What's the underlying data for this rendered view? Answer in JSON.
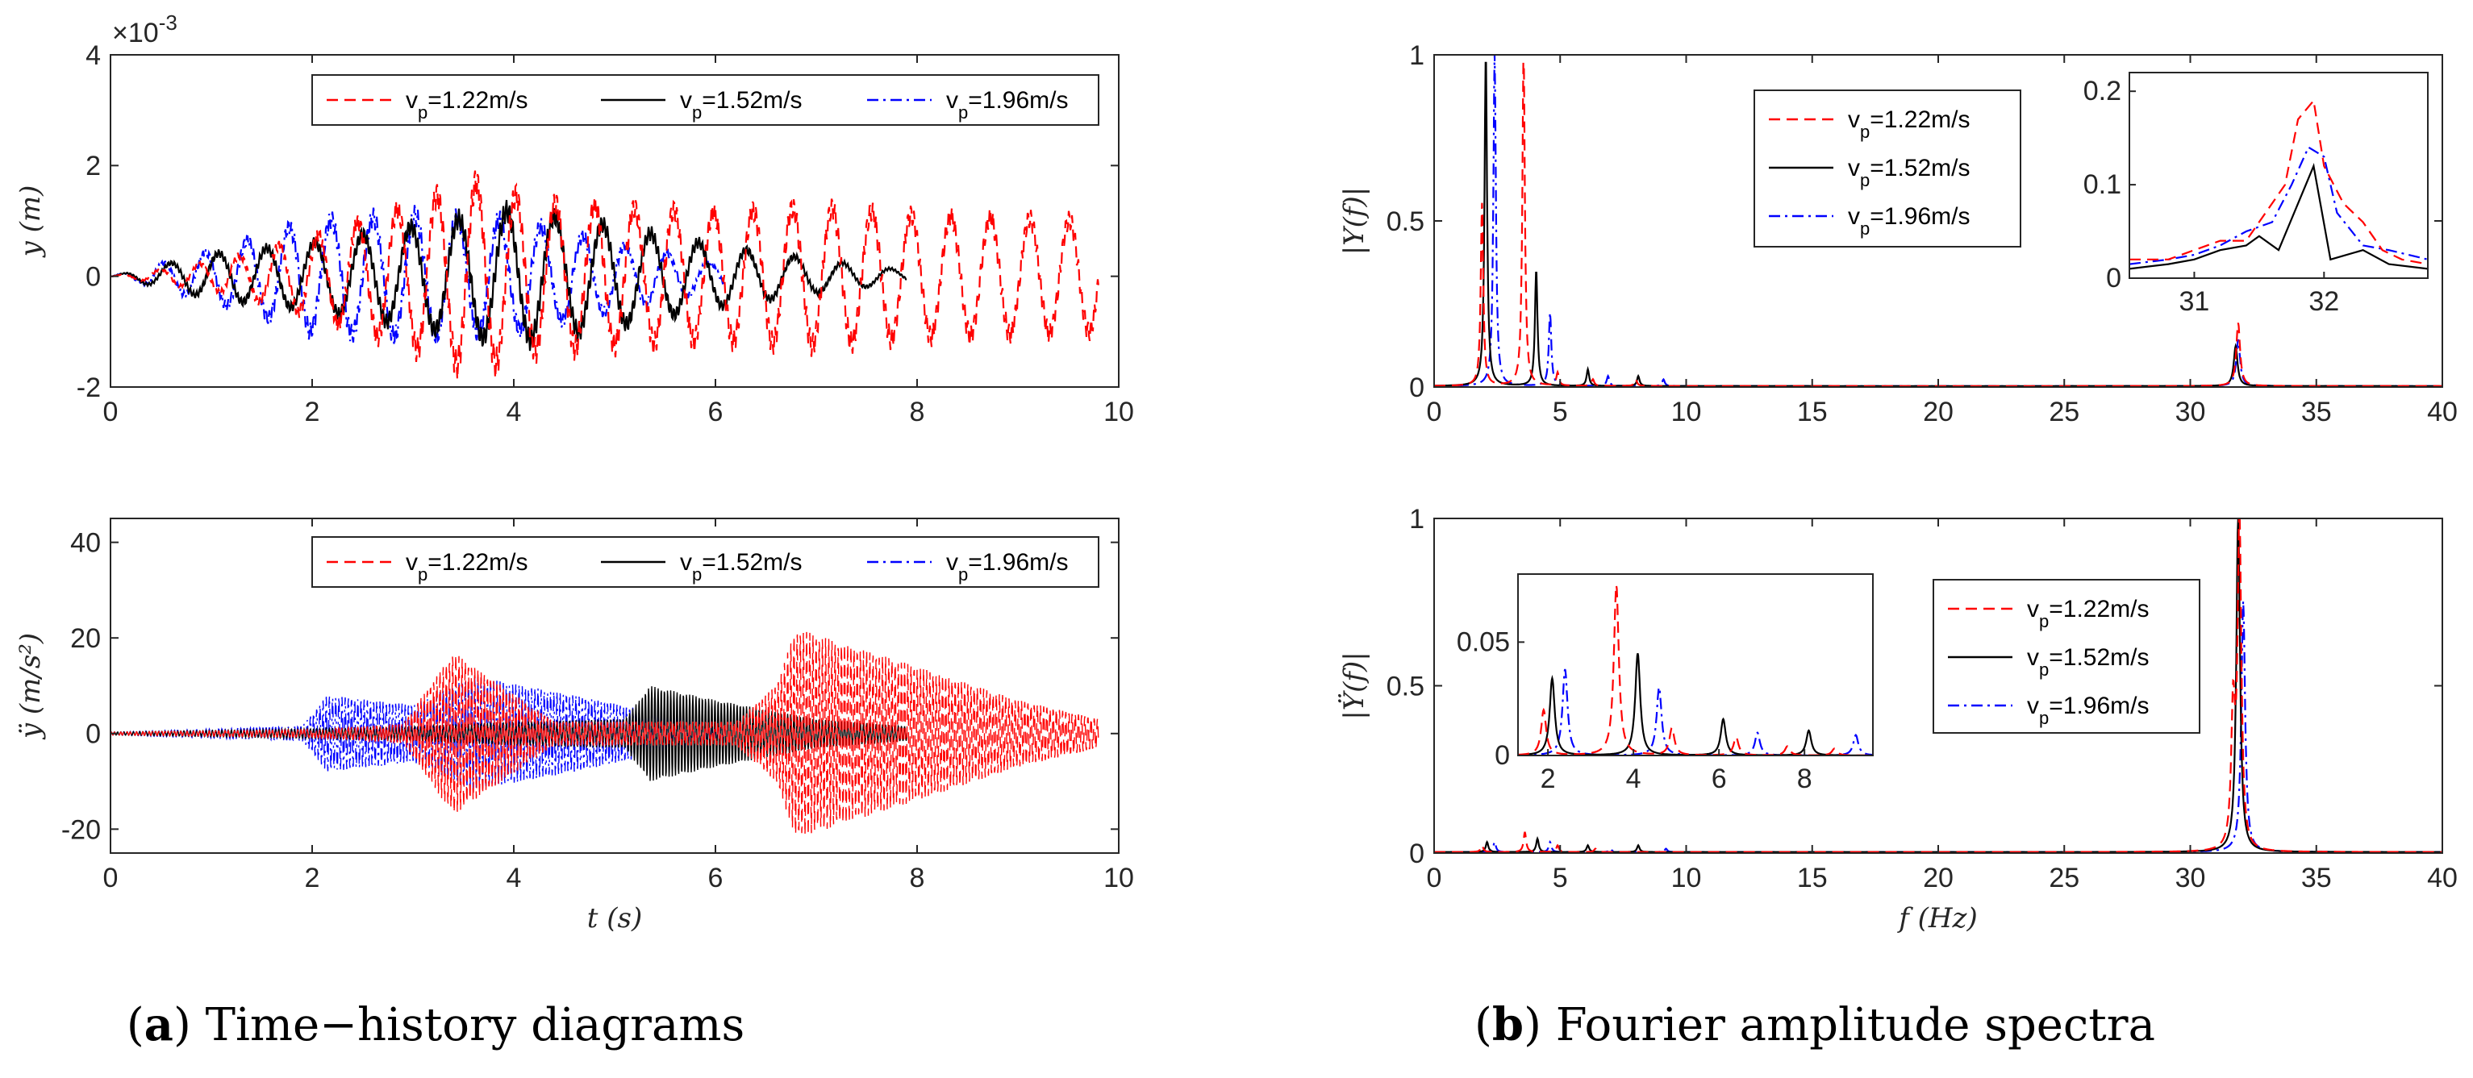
{
  "chart_data": [
    {
      "id": "a-top",
      "type": "line",
      "xlabel": "",
      "ylabel": "y (m)",
      "xlim": [
        0,
        10
      ],
      "ylim": [
        -2,
        4
      ],
      "xticks": [
        "0",
        "2",
        "4",
        "6",
        "8",
        "10"
      ],
      "yticks": [
        "-2",
        "0",
        "2",
        "4"
      ],
      "y_multiplier": "×10",
      "y_multiplier_exp": "-3",
      "legend_position": "top-center",
      "series": [
        {
          "name": "v_p=1.22m/s",
          "color": "#ff0000",
          "dash": "dashed",
          "t_end": 9.8,
          "freq": 2.55,
          "amp": [
            [
              0,
              0
            ],
            [
              1,
              0.25
            ],
            [
              2,
              0.7
            ],
            [
              3,
              1.3
            ],
            [
              3.6,
              1.7
            ],
            [
              4.2,
              1.35
            ],
            [
              5,
              1.25
            ],
            [
              6,
              1.15
            ],
            [
              7,
              1.25
            ],
            [
              8,
              1.1
            ],
            [
              9,
              1.05
            ],
            [
              9.8,
              1.0
            ]
          ]
        },
        {
          "name": "v_p=1.52m/s",
          "color": "#000000",
          "dash": "solid",
          "t_end": 7.9,
          "freq": 2.1,
          "amp": [
            [
              0,
              0
            ],
            [
              1,
              0.4
            ],
            [
              2,
              0.6
            ],
            [
              3,
              0.9
            ],
            [
              4,
              1.2
            ],
            [
              5,
              0.9
            ],
            [
              6,
              0.55
            ],
            [
              7,
              0.3
            ],
            [
              7.9,
              0.1
            ]
          ]
        },
        {
          "name": "v_p=1.96m/s",
          "color": "#0000ff",
          "dash": "dashdot",
          "t_end": 6.1,
          "freq": 2.4,
          "amp": [
            [
              0,
              0
            ],
            [
              1,
              0.45
            ],
            [
              2,
              1.0
            ],
            [
              3,
              1.1
            ],
            [
              4,
              1.0
            ],
            [
              5,
              0.6
            ],
            [
              6.1,
              0.2
            ]
          ]
        }
      ]
    },
    {
      "id": "a-bottom",
      "type": "line",
      "xlabel": "t (s)",
      "ylabel": "ÿ (m/s²)",
      "xlim": [
        0,
        10
      ],
      "ylim": [
        -25,
        45
      ],
      "xticks": [
        "0",
        "2",
        "4",
        "6",
        "8",
        "10"
      ],
      "yticks": [
        "-20",
        "0",
        "20",
        "40"
      ],
      "legend_position": "top-center",
      "series": [
        {
          "name": "v_p=1.22m/s",
          "color": "#ff0000",
          "dash": "dashed",
          "t_end": 9.8,
          "freq": 31.9,
          "amp": [
            [
              0,
              0.3
            ],
            [
              2,
              0.8
            ],
            [
              2.9,
              2
            ],
            [
              3.4,
              17
            ],
            [
              4.4,
              2.5
            ],
            [
              6.2,
              2.5
            ],
            [
              6.6,
              10
            ],
            [
              6.8,
              22
            ],
            [
              8,
              14
            ],
            [
              9,
              7
            ],
            [
              9.8,
              3
            ]
          ]
        },
        {
          "name": "v_p=1.52m/s",
          "color": "#000000",
          "dash": "solid",
          "t_end": 7.9,
          "freq": 31.9,
          "amp": [
            [
              0,
              0.3
            ],
            [
              2,
              1
            ],
            [
              3,
              1.5
            ],
            [
              4,
              2.5
            ],
            [
              5.1,
              3
            ],
            [
              5.35,
              10
            ],
            [
              6,
              7
            ],
            [
              7,
              3
            ],
            [
              7.9,
              1.5
            ]
          ]
        },
        {
          "name": "v_p=1.96m/s",
          "color": "#0000ff",
          "dash": "dashdot",
          "t_end": 6.1,
          "freq": 31.9,
          "amp": [
            [
              0,
              0.3
            ],
            [
              1.9,
              1.5
            ],
            [
              2.15,
              8
            ],
            [
              3,
              6
            ],
            [
              3.6,
              12
            ],
            [
              4.6,
              8
            ],
            [
              5.5,
              4
            ],
            [
              6.1,
              2
            ]
          ]
        }
      ]
    },
    {
      "id": "b-top",
      "type": "line",
      "xlabel": "",
      "ylabel": "|Y(f)|",
      "xlim": [
        0,
        40
      ],
      "ylim": [
        0,
        1
      ],
      "xticks": [
        "0",
        "5",
        "10",
        "15",
        "20",
        "25",
        "30",
        "35",
        "40"
      ],
      "yticks": [
        "0",
        "0.5",
        "1"
      ],
      "legend_position": "top-center",
      "series": [
        {
          "name": "v_p=1.22m/s",
          "color": "#ff0000",
          "dash": "dashed",
          "peaks": [
            [
              1.9,
              0.55
            ],
            [
              3.55,
              1.0
            ],
            [
              4.9,
              0.04
            ],
            [
              6.3,
              0.02
            ],
            [
              8.0,
              0.02
            ],
            [
              31.9,
              0.19
            ]
          ]
        },
        {
          "name": "v_p=1.52m/s",
          "color": "#000000",
          "dash": "solid",
          "peaks": [
            [
              2.05,
              1.0
            ],
            [
              4.05,
              0.35
            ],
            [
              6.1,
              0.05
            ],
            [
              8.1,
              0.03
            ],
            [
              31.8,
              0.12
            ]
          ]
        },
        {
          "name": "v_p=1.96m/s",
          "color": "#0000ff",
          "dash": "dashdot",
          "peaks": [
            [
              2.4,
              1.0
            ],
            [
              4.6,
              0.22
            ],
            [
              6.9,
              0.03
            ],
            [
              9.1,
              0.02
            ],
            [
              31.9,
              0.14
            ]
          ]
        }
      ],
      "inset": {
        "xlim": [
          30.5,
          32.8
        ],
        "ylim": [
          0,
          0.22
        ],
        "xticks": [
          "31",
          "32"
        ],
        "yticks": [
          "0",
          "0.1",
          "0.2"
        ],
        "series": [
          {
            "color": "#ff0000",
            "dash": "dashed",
            "points": [
              [
                30.5,
                0.02
              ],
              [
                30.8,
                0.02
              ],
              [
                31.0,
                0.03
              ],
              [
                31.2,
                0.04
              ],
              [
                31.4,
                0.04
              ],
              [
                31.55,
                0.07
              ],
              [
                31.7,
                0.1
              ],
              [
                31.8,
                0.17
              ],
              [
                31.92,
                0.19
              ],
              [
                32.0,
                0.12
              ],
              [
                32.15,
                0.08
              ],
              [
                32.3,
                0.06
              ],
              [
                32.45,
                0.03
              ],
              [
                32.6,
                0.02
              ],
              [
                32.8,
                0.015
              ]
            ]
          },
          {
            "color": "#000000",
            "dash": "solid",
            "points": [
              [
                30.5,
                0.01
              ],
              [
                30.8,
                0.015
              ],
              [
                31.0,
                0.02
              ],
              [
                31.2,
                0.03
              ],
              [
                31.4,
                0.035
              ],
              [
                31.5,
                0.045
              ],
              [
                31.65,
                0.03
              ],
              [
                31.8,
                0.08
              ],
              [
                31.92,
                0.12
              ],
              [
                32.05,
                0.02
              ],
              [
                32.3,
                0.03
              ],
              [
                32.5,
                0.015
              ],
              [
                32.8,
                0.01
              ]
            ]
          },
          {
            "color": "#0000ff",
            "dash": "dashdot",
            "points": [
              [
                30.5,
                0.015
              ],
              [
                30.8,
                0.02
              ],
              [
                31.0,
                0.025
              ],
              [
                31.2,
                0.035
              ],
              [
                31.4,
                0.05
              ],
              [
                31.6,
                0.06
              ],
              [
                31.75,
                0.1
              ],
              [
                31.88,
                0.14
              ],
              [
                32.0,
                0.13
              ],
              [
                32.1,
                0.07
              ],
              [
                32.3,
                0.035
              ],
              [
                32.5,
                0.03
              ],
              [
                32.8,
                0.02
              ]
            ]
          }
        ]
      }
    },
    {
      "id": "b-bottom",
      "type": "line",
      "xlabel": "f (Hz)",
      "ylabel": "|Ÿ(f)|",
      "xlim": [
        0,
        40
      ],
      "ylim": [
        0,
        1
      ],
      "xticks": [
        "0",
        "5",
        "10",
        "15",
        "20",
        "25",
        "30",
        "35",
        "40"
      ],
      "yticks": [
        "0",
        "0.5",
        "1"
      ],
      "legend_position": "center-right",
      "series": [
        {
          "name": "v_p=1.22m/s",
          "color": "#ff0000",
          "dash": "dashed",
          "peaks": [
            [
              1.9,
              0.02
            ],
            [
              3.6,
              0.06
            ],
            [
              4.9,
              0.02
            ],
            [
              6.4,
              0.01
            ],
            [
              31.7,
              0.4
            ],
            [
              31.95,
              0.98
            ]
          ]
        },
        {
          "name": "v_p=1.52m/s",
          "color": "#000000",
          "dash": "solid",
          "peaks": [
            [
              2.1,
              0.03
            ],
            [
              4.1,
              0.04
            ],
            [
              6.1,
              0.02
            ],
            [
              8.1,
              0.02
            ],
            [
              31.9,
              1.0
            ]
          ]
        },
        {
          "name": "v_p=1.96m/s",
          "color": "#0000ff",
          "dash": "dashdot",
          "peaks": [
            [
              2.4,
              0.03
            ],
            [
              4.6,
              0.03
            ],
            [
              7.0,
              0.01
            ],
            [
              9.2,
              0.01
            ],
            [
              32.1,
              0.75
            ]
          ]
        }
      ],
      "inset": {
        "xlim": [
          1.3,
          9.6
        ],
        "ylim": [
          0,
          0.08
        ],
        "xticks": [
          "2",
          "4",
          "6",
          "8"
        ],
        "yticks": [
          "0",
          "0.05"
        ],
        "series": [
          {
            "color": "#ff0000",
            "dash": "dashed",
            "peaks": [
              [
                1.9,
                0.02
              ],
              [
                3.6,
                0.075
              ],
              [
                4.9,
                0.012
              ],
              [
                6.4,
                0.008
              ],
              [
                7.6,
                0.004
              ],
              [
                8.7,
                0.003
              ]
            ]
          },
          {
            "color": "#000000",
            "dash": "solid",
            "peaks": [
              [
                2.1,
                0.034
              ],
              [
                4.1,
                0.045
              ],
              [
                6.1,
                0.016
              ],
              [
                8.1,
                0.011
              ]
            ]
          },
          {
            "color": "#0000ff",
            "dash": "dashdot",
            "peaks": [
              [
                2.4,
                0.038
              ],
              [
                4.6,
                0.03
              ],
              [
                6.9,
                0.01
              ],
              [
                9.2,
                0.009
              ]
            ]
          }
        ]
      }
    }
  ],
  "captions": {
    "a_letter": "a",
    "a_text": "Time−history diagrams",
    "b_letter": "b",
    "b_text": "Fourier amplitude spectra"
  },
  "legend_labels": [
    "v_p=1.22m/s",
    "v_p=1.52m/s",
    "v_p=1.96m/s"
  ]
}
